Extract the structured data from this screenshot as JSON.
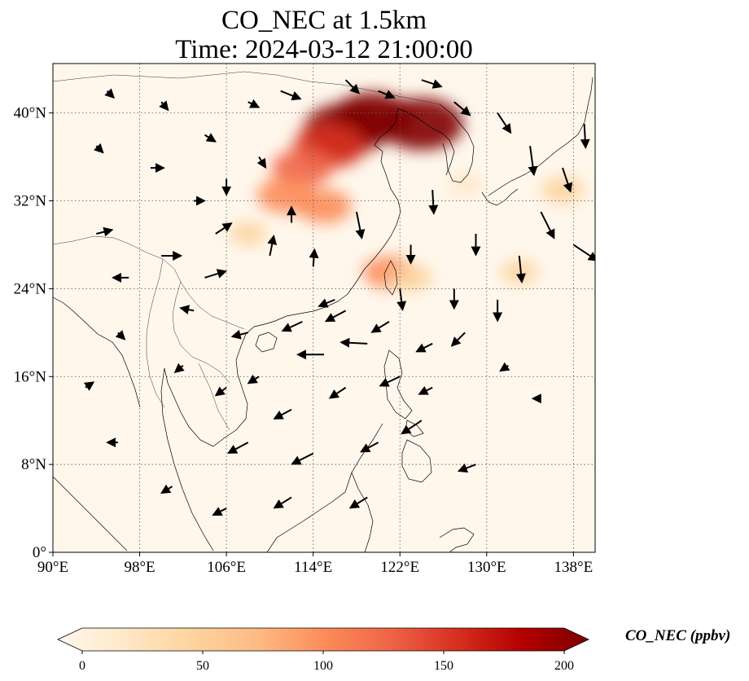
{
  "title": "CO_NEC at 1.5km",
  "subtitle": "Time: 2024-03-12 21:00:00",
  "chart_data": {
    "type": "heatmap",
    "variable": "CO_NEC",
    "level": "1.5km",
    "xlabel": "",
    "ylabel": "",
    "lon_range": [
      90,
      140
    ],
    "lat_range": [
      0,
      44.5
    ],
    "lon_ticks": [
      90,
      98,
      106,
      114,
      122,
      130,
      138
    ],
    "lon_tick_labels": [
      "90°E",
      "98°E",
      "106°E",
      "114°E",
      "122°E",
      "130°E",
      "138°E"
    ],
    "lat_ticks": [
      0,
      8,
      16,
      24,
      32,
      40
    ],
    "lat_tick_labels": [
      "0°",
      "8°N",
      "16°N",
      "24°N",
      "32°N",
      "40°N"
    ],
    "grid": true,
    "colormap": "OrRd",
    "colorbar": {
      "label": "CO_NEC (ppbv)",
      "min": 0,
      "max": 200,
      "ticks": [
        0,
        50,
        100,
        150,
        200
      ],
      "tick_labels": [
        "0",
        "50",
        "100",
        "150",
        "200"
      ],
      "extend": "both",
      "colors": [
        "#fff7ec",
        "#fee8c8",
        "#fdd49e",
        "#fdbb84",
        "#fc8d59",
        "#ef6548",
        "#d7301f",
        "#b30000",
        "#7f0000"
      ]
    },
    "plumes": [
      {
        "lon": 117.0,
        "lat": 38.5,
        "value": 200
      },
      {
        "lon": 119.5,
        "lat": 39.6,
        "value": 190
      },
      {
        "lon": 124.0,
        "lat": 39.0,
        "value": 200
      },
      {
        "lon": 115.5,
        "lat": 37.0,
        "value": 160
      },
      {
        "lon": 113.0,
        "lat": 35.0,
        "value": 120
      },
      {
        "lon": 111.5,
        "lat": 32.5,
        "value": 110
      },
      {
        "lon": 115.0,
        "lat": 31.5,
        "value": 100
      },
      {
        "lon": 121.0,
        "lat": 25.5,
        "value": 90
      },
      {
        "lon": 123.0,
        "lat": 25.0,
        "value": 60
      },
      {
        "lon": 133.0,
        "lat": 25.5,
        "value": 40
      },
      {
        "lon": 108.0,
        "lat": 29.0,
        "value": 40
      },
      {
        "lon": 137.0,
        "lat": 33.0,
        "value": 60
      },
      {
        "lon": 128.0,
        "lat": 33.5,
        "value": 30
      }
    ],
    "wind_vectors": [
      {
        "lon": 111,
        "lat": 42,
        "u": 1.5,
        "v": -0.6
      },
      {
        "lon": 117,
        "lat": 43,
        "u": 1.0,
        "v": -1.0
      },
      {
        "lon": 120,
        "lat": 42,
        "u": 1.2,
        "v": -0.5
      },
      {
        "lon": 124,
        "lat": 43,
        "u": 1.5,
        "v": -0.5
      },
      {
        "lon": 127,
        "lat": 41,
        "u": 1.2,
        "v": -1.0
      },
      {
        "lon": 131,
        "lat": 40,
        "u": 1.0,
        "v": -1.5
      },
      {
        "lon": 134,
        "lat": 37,
        "u": 0.3,
        "v": -2.2
      },
      {
        "lon": 137,
        "lat": 35,
        "u": 0.6,
        "v": -1.8
      },
      {
        "lon": 139,
        "lat": 39,
        "u": 0.1,
        "v": -1.8
      },
      {
        "lon": 135,
        "lat": 31,
        "u": 1.0,
        "v": -2.0
      },
      {
        "lon": 138,
        "lat": 28,
        "u": 1.8,
        "v": -1.2
      },
      {
        "lon": 133,
        "lat": 27,
        "u": 0.2,
        "v": -2.0
      },
      {
        "lon": 131,
        "lat": 23,
        "u": 0.0,
        "v": -1.6
      },
      {
        "lon": 127,
        "lat": 24,
        "u": 0.0,
        "v": -1.5
      },
      {
        "lon": 122,
        "lat": 24,
        "u": 0.2,
        "v": -1.6
      },
      {
        "lon": 117,
        "lat": 22,
        "u": -1.5,
        "v": -0.8
      },
      {
        "lon": 113,
        "lat": 21,
        "u": -1.5,
        "v": -0.7
      },
      {
        "lon": 108,
        "lat": 20,
        "u": -1.2,
        "v": -0.3
      },
      {
        "lon": 103,
        "lat": 22,
        "u": -1.0,
        "v": 0.2
      },
      {
        "lon": 97,
        "lat": 25,
        "u": -1.2,
        "v": 0.0
      },
      {
        "lon": 94,
        "lat": 29,
        "u": 1.2,
        "v": 0.3
      },
      {
        "lon": 100,
        "lat": 27,
        "u": 1.5,
        "v": 0.0
      },
      {
        "lon": 105,
        "lat": 29,
        "u": 1.2,
        "v": 0.8
      },
      {
        "lon": 110,
        "lat": 27,
        "u": 0.3,
        "v": 1.5
      },
      {
        "lon": 112,
        "lat": 30,
        "u": 0.0,
        "v": 1.2
      },
      {
        "lon": 118,
        "lat": 31,
        "u": 0.4,
        "v": -2.0
      },
      {
        "lon": 125,
        "lat": 33,
        "u": 0.1,
        "v": -1.8
      },
      {
        "lon": 119,
        "lat": 19,
        "u": -2.0,
        "v": 0.1
      },
      {
        "lon": 125,
        "lat": 19,
        "u": -1.2,
        "v": -0.6
      },
      {
        "lon": 128,
        "lat": 20,
        "u": -1.0,
        "v": -1.0
      },
      {
        "lon": 122,
        "lat": 16,
        "u": -1.5,
        "v": -0.7
      },
      {
        "lon": 117,
        "lat": 15,
        "u": -1.2,
        "v": -0.8
      },
      {
        "lon": 112,
        "lat": 13,
        "u": -1.3,
        "v": -0.7
      },
      {
        "lon": 108,
        "lat": 10,
        "u": -1.5,
        "v": -0.8
      },
      {
        "lon": 114,
        "lat": 9,
        "u": -1.6,
        "v": -0.8
      },
      {
        "lon": 120,
        "lat": 10,
        "u": -1.3,
        "v": -0.7
      },
      {
        "lon": 124,
        "lat": 12,
        "u": -1.5,
        "v": -1.0
      },
      {
        "lon": 129,
        "lat": 8,
        "u": -1.3,
        "v": -0.5
      },
      {
        "lon": 119,
        "lat": 5,
        "u": -1.3,
        "v": -0.8
      },
      {
        "lon": 112,
        "lat": 5,
        "u": -1.3,
        "v": -0.8
      },
      {
        "lon": 106,
        "lat": 4,
        "u": -1.0,
        "v": -0.5
      },
      {
        "lon": 101,
        "lat": 6,
        "u": -0.8,
        "v": -0.5
      },
      {
        "lon": 96,
        "lat": 10,
        "u": -0.8,
        "v": 0.0
      },
      {
        "lon": 93,
        "lat": 15,
        "u": 0.6,
        "v": 0.4
      },
      {
        "lon": 96,
        "lat": 20,
        "u": 0.5,
        "v": -0.5
      },
      {
        "lon": 102,
        "lat": 17,
        "u": -0.6,
        "v": -0.5
      },
      {
        "lon": 106,
        "lat": 15,
        "u": -0.8,
        "v": -0.6
      },
      {
        "lon": 99,
        "lat": 35,
        "u": 1.0,
        "v": 0.0
      },
      {
        "lon": 94,
        "lat": 37,
        "u": 0.5,
        "v": -0.5
      },
      {
        "lon": 104,
        "lat": 38,
        "u": 0.8,
        "v": -0.5
      },
      {
        "lon": 106,
        "lat": 34,
        "u": 0.0,
        "v": -1.2
      },
      {
        "lon": 109,
        "lat": 36,
        "u": 0.5,
        "v": -0.8
      },
      {
        "lon": 100,
        "lat": 41,
        "u": 0.5,
        "v": -0.6
      },
      {
        "lon": 95,
        "lat": 42,
        "u": 0.5,
        "v": -0.5
      },
      {
        "lon": 108,
        "lat": 41,
        "u": 0.8,
        "v": -0.4
      },
      {
        "lon": 103,
        "lat": 32,
        "u": 0.8,
        "v": 0.0
      },
      {
        "lon": 114,
        "lat": 26,
        "u": 0.1,
        "v": 1.3
      },
      {
        "lon": 116,
        "lat": 23,
        "u": -1.2,
        "v": -0.5
      },
      {
        "lon": 129,
        "lat": 29,
        "u": 0.0,
        "v": -1.6
      },
      {
        "lon": 132,
        "lat": 17,
        "u": -0.6,
        "v": -0.4
      },
      {
        "lon": 135,
        "lat": 14,
        "u": -0.6,
        "v": 0.0
      },
      {
        "lon": 125,
        "lat": 15,
        "u": -1.0,
        "v": -0.5
      },
      {
        "lon": 109,
        "lat": 16,
        "u": -0.8,
        "v": -0.5
      },
      {
        "lon": 115,
        "lat": 18,
        "u": -2.0,
        "v": 0.0
      },
      {
        "lon": 121,
        "lat": 21,
        "u": -1.3,
        "v": -0.8
      },
      {
        "lon": 123,
        "lat": 28,
        "u": 0.0,
        "v": -1.4
      },
      {
        "lon": 104,
        "lat": 25,
        "u": 1.6,
        "v": 0.5
      }
    ]
  }
}
